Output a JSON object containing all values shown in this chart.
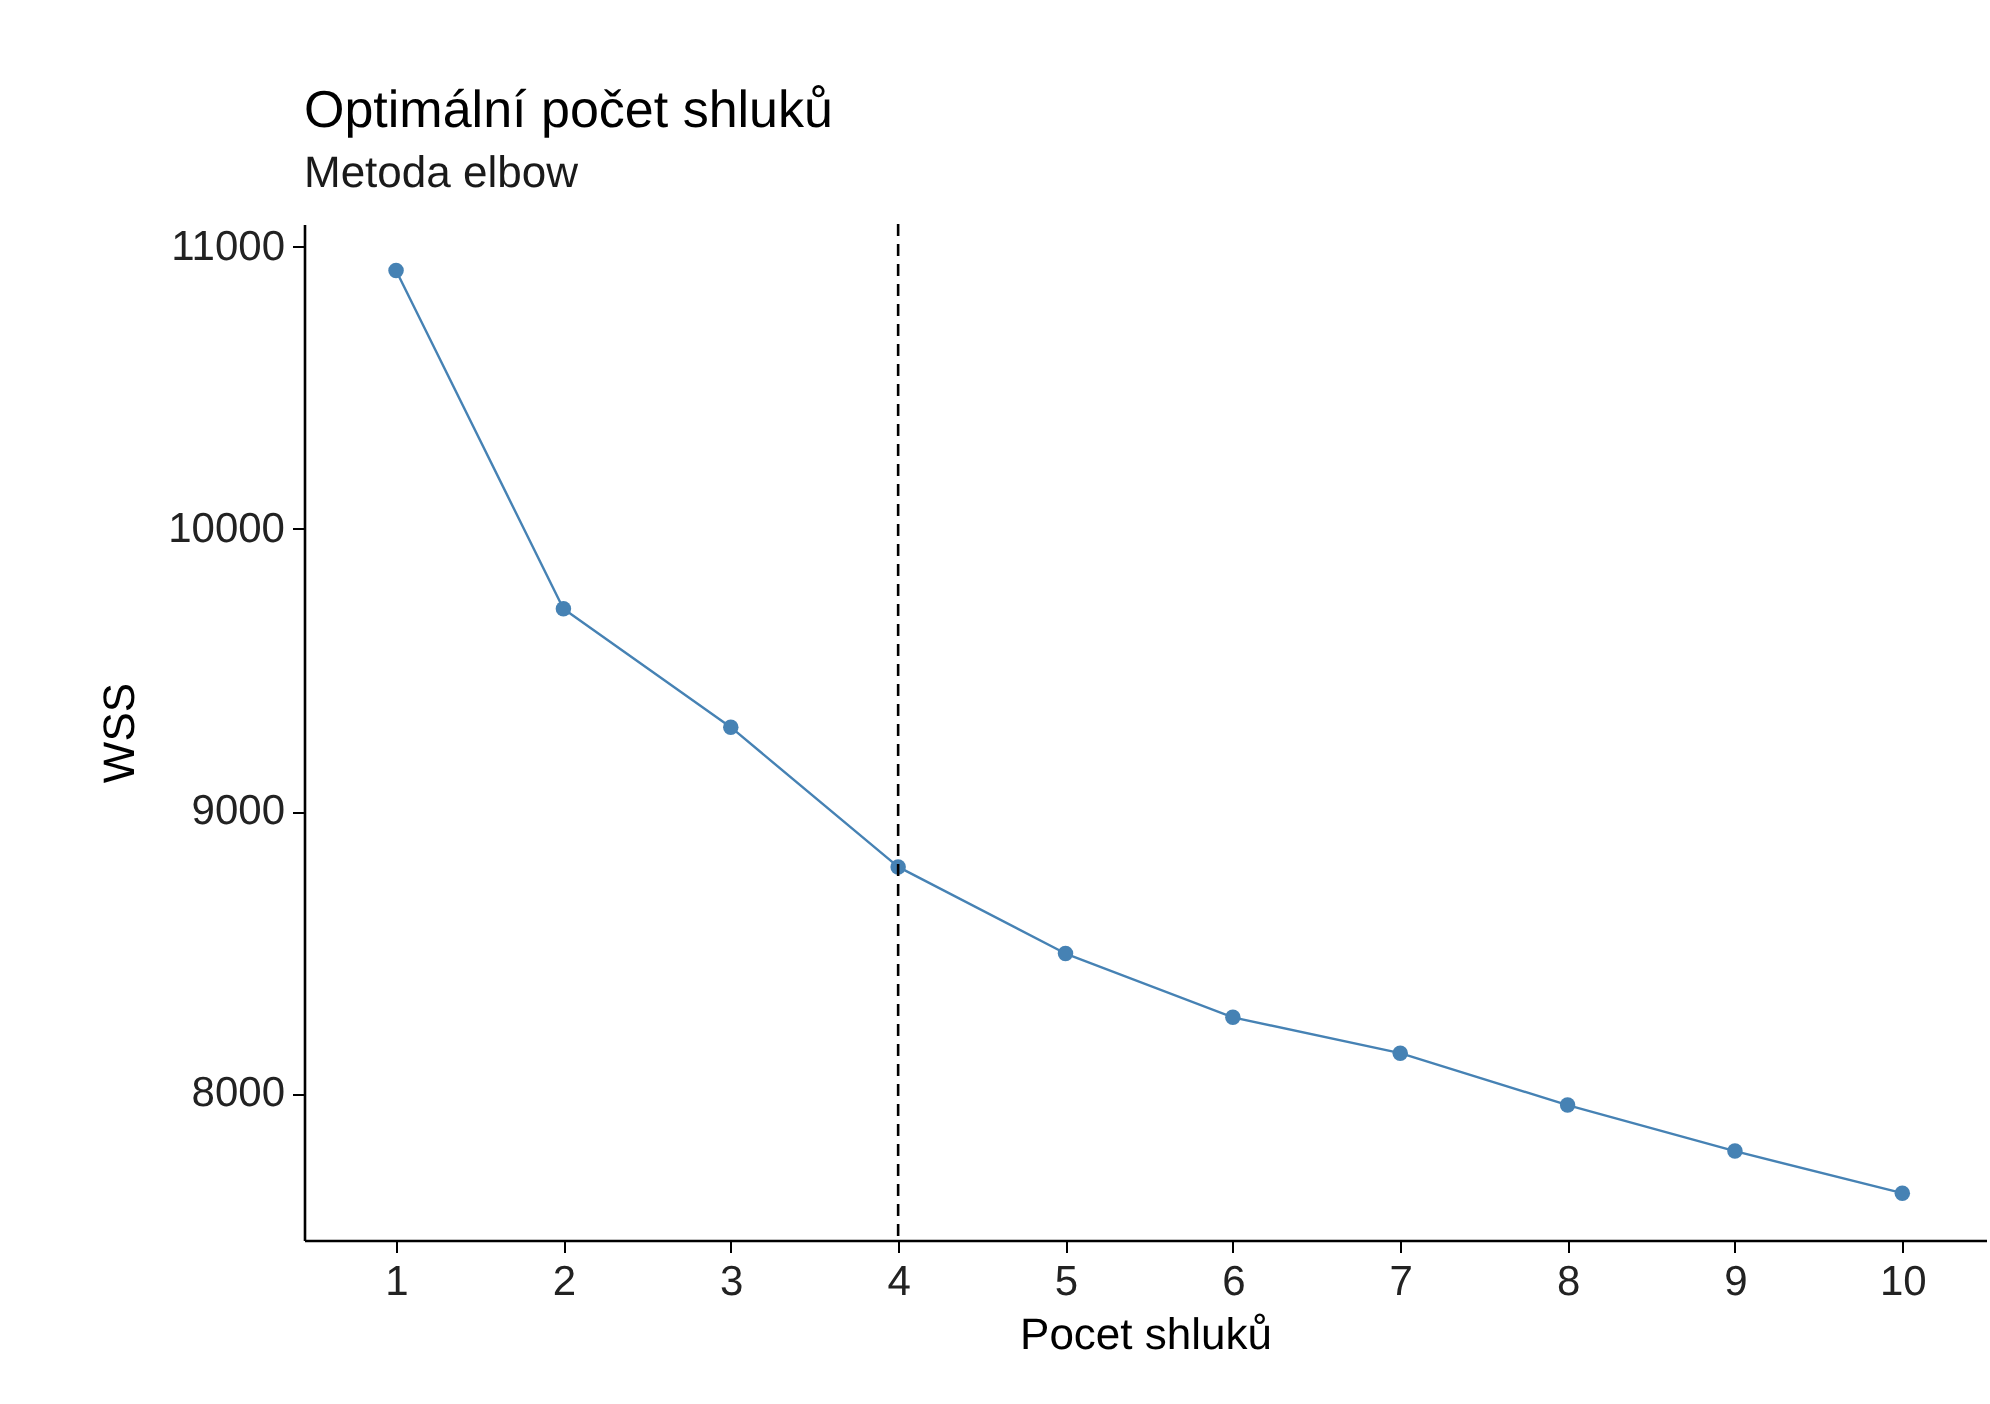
{
  "chart_data": {
    "type": "line",
    "title": "Optimální počet shluků",
    "subtitle": "Metoda elbow",
    "xlabel": "Pocet shluků",
    "ylabel": "WSS",
    "x": [
      1,
      2,
      3,
      4,
      5,
      6,
      7,
      8,
      9,
      10
    ],
    "series": [
      {
        "color": "#4682b4",
        "values": [
          10915,
          9717,
          9297,
          8802,
          8495,
          8269,
          8142,
          7958,
          7795,
          7646
        ]
      }
    ],
    "xlim": [
      0.45,
      10.5
    ],
    "ylim": [
      7480,
      11080
    ],
    "xticks": [
      1,
      2,
      3,
      4,
      5,
      6,
      7,
      8,
      9,
      10
    ],
    "yticks": [
      8000,
      9000,
      10000,
      11000
    ],
    "ref_lines": [
      {
        "axis": "x",
        "value": 4,
        "line_style": "dashed",
        "color": "#000000"
      }
    ],
    "marker": "circle",
    "line_style": "solid",
    "grid": false
  }
}
